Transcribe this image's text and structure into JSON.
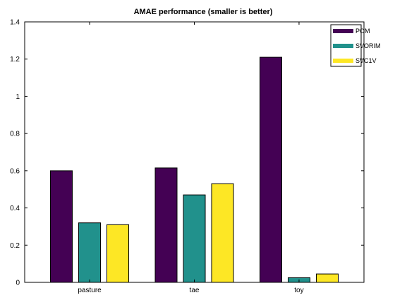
{
  "chart_data": {
    "type": "bar",
    "title": "AMAE performance (smaller is better)",
    "xlabel": "",
    "ylabel": "",
    "categories": [
      "pasture",
      "tae",
      "toy"
    ],
    "series": [
      {
        "name": "POM",
        "color": "#440154",
        "values": [
          0.6,
          0.615,
          1.21
        ]
      },
      {
        "name": "SVORIM",
        "color": "#21918c",
        "values": [
          0.32,
          0.47,
          0.025
        ]
      },
      {
        "name": "SVC1V",
        "color": "#fde725",
        "values": [
          0.31,
          0.53,
          0.045
        ]
      }
    ],
    "ylim": [
      0,
      1.4
    ],
    "yticks": [
      0,
      0.2,
      0.4,
      0.6,
      0.8,
      1,
      1.2,
      1.4
    ],
    "grid": false,
    "legend_position": "top-right"
  }
}
